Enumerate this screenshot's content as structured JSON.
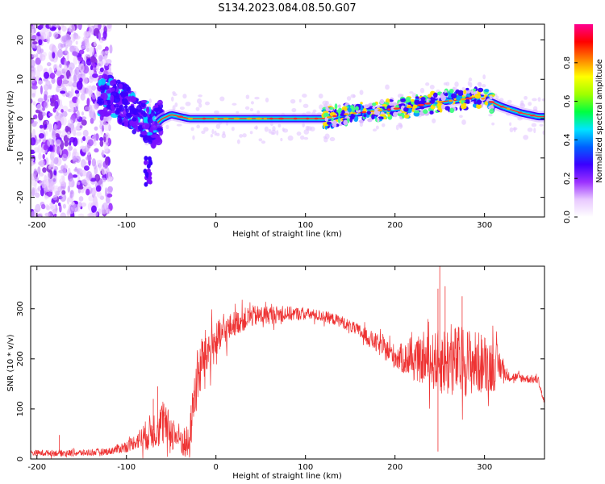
{
  "title": "S134.2023.084.08.50.G07",
  "chart_data": [
    {
      "type": "heatmap",
      "xlabel": "Height of straight line (km)",
      "ylabel": "Frequency (Hz)",
      "xlim": [
        -207,
        367
      ],
      "ylim": [
        -25,
        24
      ],
      "x_ticks": [
        -200,
        -100,
        0,
        100,
        200,
        300
      ],
      "y_ticks": [
        -20,
        -10,
        0,
        10,
        20
      ],
      "colorbar": {
        "label": "Normalized spectral amplitude",
        "ticks": [
          0.0,
          0.2,
          0.4,
          0.6,
          0.8
        ],
        "range": [
          0,
          1
        ],
        "colormap": [
          "#ffffff",
          "#e8c8ff",
          "#9b30ff",
          "#3a00ff",
          "#0060ff",
          "#00e5ff",
          "#00ff40",
          "#a0ff00",
          "#ffff00",
          "#ff8000",
          "#ff0000",
          "#ff0090"
        ]
      },
      "ridge": {
        "x": [
          -125,
          -110,
          -100,
          -90,
          -80,
          -70,
          -65,
          -60,
          -50,
          -40,
          -30,
          0,
          50,
          100,
          120,
          140,
          160,
          180,
          200,
          220,
          240,
          260,
          280,
          290,
          300,
          320,
          340,
          360
        ],
        "y": [
          6,
          5,
          3,
          1,
          0,
          -2,
          -1,
          0,
          1,
          0.5,
          0,
          0,
          0,
          0,
          0,
          1,
          1.5,
          2,
          2.5,
          3,
          4,
          4.5,
          5,
          5.5,
          5,
          3,
          1.5,
          0.5
        ]
      },
      "noise_region_km": [
        -207,
        -125
      ],
      "burst_region_km": [
        -130,
        -60
      ],
      "noise_freq_range_hz": [
        -25,
        24
      ]
    },
    {
      "type": "line",
      "xlabel": "Height of straight line (km)",
      "ylabel": "SNR (10 * v/v)",
      "xlim": [
        -207,
        367
      ],
      "ylim": [
        0,
        385
      ],
      "x_ticks": [
        -200,
        -100,
        0,
        100,
        200,
        300
      ],
      "y_ticks": [
        0,
        100,
        200,
        300
      ],
      "color": "#ee3333",
      "envelope": {
        "x": [
          -207,
          -150,
          -120,
          -100,
          -80,
          -60,
          -40,
          -30,
          -25,
          -15,
          0,
          20,
          40,
          60,
          80,
          100,
          120,
          140,
          160,
          180,
          200,
          220,
          240,
          260,
          280,
          300,
          320,
          325,
          340,
          360,
          367
        ],
        "y": [
          12,
          12,
          15,
          25,
          45,
          70,
          40,
          25,
          120,
          200,
          235,
          270,
          285,
          288,
          290,
          290,
          285,
          275,
          255,
          230,
          205,
          195,
          195,
          195,
          195,
          190,
          185,
          165,
          162,
          158,
          110
        ]
      },
      "noise_amplitude": {
        "x": [
          -207,
          -120,
          -90,
          -75,
          -60,
          -40,
          -30,
          -20,
          0,
          20,
          100,
          150,
          200,
          230,
          260,
          280,
          310,
          325,
          367
        ],
        "y": [
          6,
          7,
          15,
          35,
          45,
          30,
          40,
          60,
          40,
          25,
          12,
          12,
          25,
          45,
          75,
          70,
          55,
          10,
          8
        ]
      },
      "spikes": [
        {
          "x": 250,
          "y": 385
        },
        {
          "x": 248,
          "y": 340
        },
        {
          "x": 256,
          "y": 345
        },
        {
          "x": 275,
          "y": 325
        },
        {
          "x": -65,
          "y": 145
        },
        {
          "x": -70,
          "y": 120
        },
        {
          "x": -175,
          "y": 48
        },
        {
          "x": 248,
          "y": 15
        }
      ]
    }
  ]
}
